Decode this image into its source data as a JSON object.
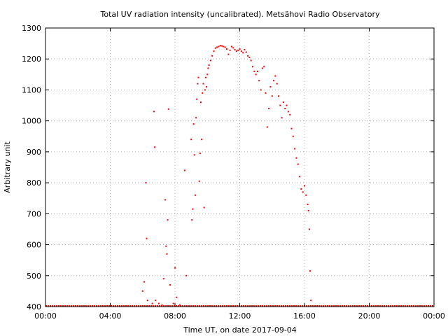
{
  "chart_data": {
    "type": "scatter",
    "title": "Total UV radiation intensity (uncalibrated). Metsähovi Radio Observatory",
    "xlabel": "Time UT, on date 2017-09-04",
    "ylabel": "Arbitrary unit",
    "xlim": [
      0,
      24
    ],
    "ylim": [
      400,
      1300
    ],
    "xticks": [
      {
        "value": 0,
        "label": "00:00"
      },
      {
        "value": 4,
        "label": "04:00"
      },
      {
        "value": 8,
        "label": "08:00"
      },
      {
        "value": 12,
        "label": "12:00"
      },
      {
        "value": 16,
        "label": "16:00"
      },
      {
        "value": 20,
        "label": "20:00"
      },
      {
        "value": 24,
        "label": "00:00"
      }
    ],
    "yticks": [
      {
        "value": 400,
        "label": "400"
      },
      {
        "value": 500,
        "label": "500"
      },
      {
        "value": 600,
        "label": "600"
      },
      {
        "value": 700,
        "label": "700"
      },
      {
        "value": 800,
        "label": "800"
      },
      {
        "value": 900,
        "label": "900"
      },
      {
        "value": 1000,
        "label": "1000"
      },
      {
        "value": 1100,
        "label": "1100"
      },
      {
        "value": 1200,
        "label": "1200"
      },
      {
        "value": 1300,
        "label": "1300"
      }
    ],
    "grid": true,
    "marker_color": "#ff0000",
    "series": [
      {
        "points": [
          [
            6.0,
            450
          ],
          [
            6.1,
            480
          ],
          [
            6.2,
            800
          ],
          [
            6.25,
            620
          ],
          [
            6.3,
            420
          ],
          [
            6.6,
            410
          ],
          [
            6.7,
            1030
          ],
          [
            6.75,
            915
          ],
          [
            6.8,
            420
          ],
          [
            7.0,
            410
          ],
          [
            7.2,
            405
          ],
          [
            7.3,
            490
          ],
          [
            7.4,
            745
          ],
          [
            7.45,
            595
          ],
          [
            7.5,
            570
          ],
          [
            7.55,
            680
          ],
          [
            7.6,
            1038
          ],
          [
            7.7,
            470
          ],
          [
            7.9,
            410
          ],
          [
            8.0,
            525
          ],
          [
            8.1,
            430
          ],
          [
            8.3,
            405
          ],
          [
            8.6,
            840
          ],
          [
            8.7,
            500
          ],
          [
            9.0,
            940
          ],
          [
            9.05,
            680
          ],
          [
            9.1,
            715
          ],
          [
            9.15,
            990
          ],
          [
            9.2,
            890
          ],
          [
            9.25,
            760
          ],
          [
            9.3,
            1010
          ],
          [
            9.35,
            1070
          ],
          [
            9.4,
            1120
          ],
          [
            9.45,
            1140
          ],
          [
            9.5,
            805
          ],
          [
            9.55,
            895
          ],
          [
            9.6,
            1060
          ],
          [
            9.65,
            940
          ],
          [
            9.7,
            1090
          ],
          [
            9.75,
            1120
          ],
          [
            9.8,
            720
          ],
          [
            9.85,
            1100
          ],
          [
            9.9,
            1140
          ],
          [
            9.95,
            1110
          ],
          [
            10.0,
            1150
          ],
          [
            10.05,
            1170
          ],
          [
            10.1,
            1180
          ],
          [
            10.2,
            1195
          ],
          [
            10.3,
            1210
          ],
          [
            10.4,
            1225
          ],
          [
            10.5,
            1235
          ],
          [
            10.6,
            1238
          ],
          [
            10.7,
            1240
          ],
          [
            10.8,
            1243
          ],
          [
            10.9,
            1242
          ],
          [
            11.0,
            1240
          ],
          [
            11.1,
            1238
          ],
          [
            11.2,
            1232
          ],
          [
            11.3,
            1215
          ],
          [
            11.4,
            1228
          ],
          [
            11.5,
            1240
          ],
          [
            11.6,
            1236
          ],
          [
            11.7,
            1230
          ],
          [
            11.8,
            1225
          ],
          [
            11.9,
            1228
          ],
          [
            12.0,
            1232
          ],
          [
            12.1,
            1225
          ],
          [
            12.2,
            1220
          ],
          [
            12.3,
            1230
          ],
          [
            12.4,
            1222
          ],
          [
            12.5,
            1210
          ],
          [
            12.6,
            1205
          ],
          [
            12.7,
            1195
          ],
          [
            12.8,
            1175
          ],
          [
            12.9,
            1160
          ],
          [
            13.0,
            1150
          ],
          [
            13.1,
            1160
          ],
          [
            13.2,
            1130
          ],
          [
            13.3,
            1100
          ],
          [
            13.4,
            1170
          ],
          [
            13.5,
            1175
          ],
          [
            13.6,
            1090
          ],
          [
            13.7,
            980
          ],
          [
            13.8,
            1040
          ],
          [
            13.9,
            1110
          ],
          [
            14.0,
            1080
          ],
          [
            14.1,
            1130
          ],
          [
            14.2,
            1145
          ],
          [
            14.3,
            1120
          ],
          [
            14.4,
            1080
          ],
          [
            14.5,
            1050
          ],
          [
            14.6,
            1010
          ],
          [
            14.7,
            1060
          ],
          [
            14.8,
            1040
          ],
          [
            14.9,
            1050
          ],
          [
            15.0,
            1030
          ],
          [
            15.1,
            1020
          ],
          [
            15.2,
            975
          ],
          [
            15.3,
            950
          ],
          [
            15.4,
            910
          ],
          [
            15.5,
            880
          ],
          [
            15.6,
            860
          ],
          [
            15.7,
            820
          ],
          [
            15.8,
            780
          ],
          [
            15.9,
            770
          ],
          [
            16.0,
            790
          ],
          [
            16.1,
            760
          ],
          [
            16.2,
            730
          ],
          [
            16.25,
            710
          ],
          [
            16.3,
            650
          ],
          [
            16.35,
            515
          ],
          [
            16.4,
            420
          ]
        ]
      }
    ]
  }
}
